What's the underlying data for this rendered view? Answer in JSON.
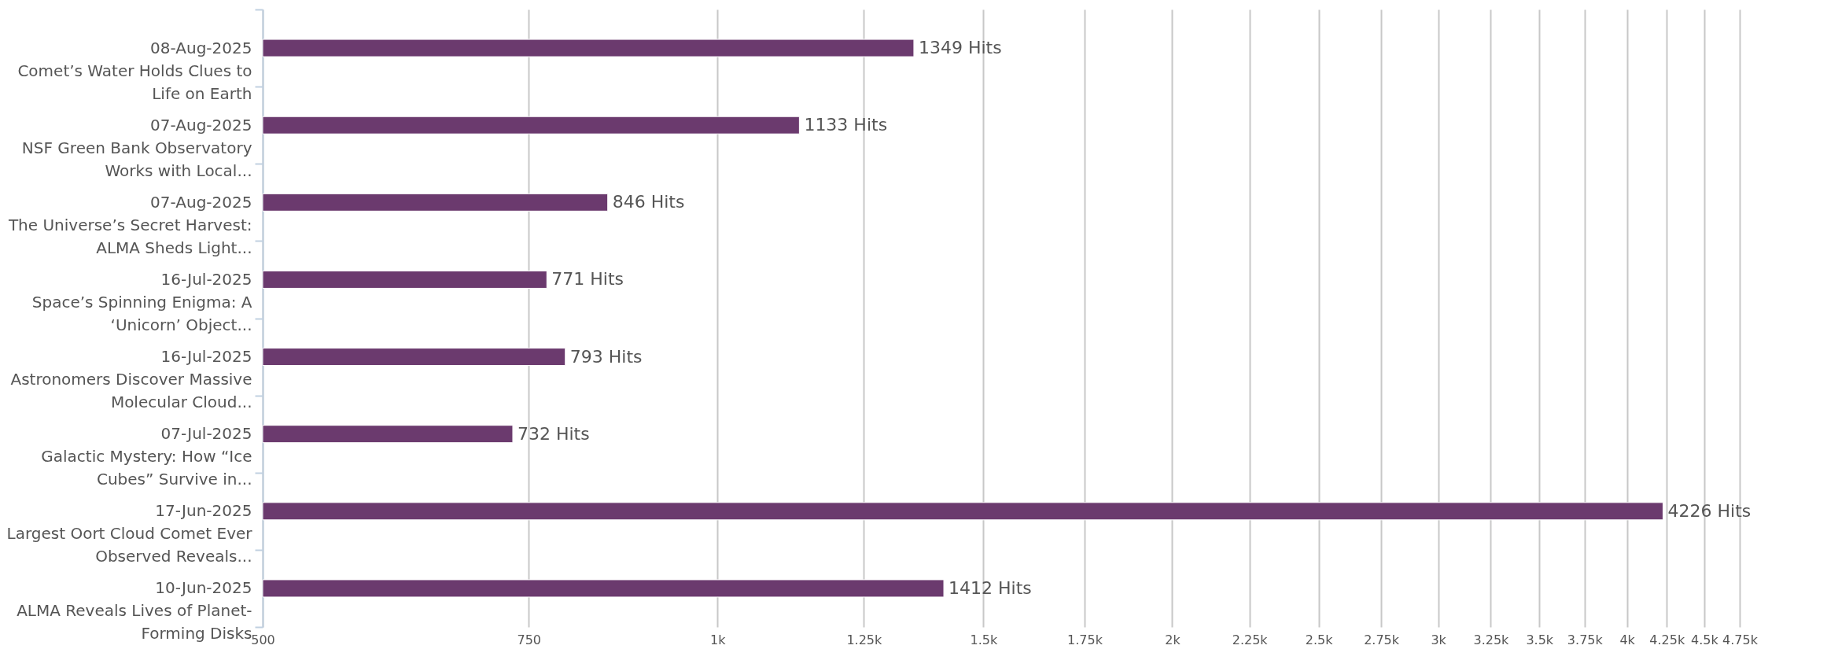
{
  "chart_data": {
    "type": "bar",
    "orientation": "horizontal",
    "categories": [
      "08-Aug-2025\nComet’s Water Holds Clues to\nLife on Earth",
      "07-Aug-2025\nNSF Green Bank Observatory\nWorks with Local...",
      "07-Aug-2025\nThe Universe’s Secret Harvest:\nALMA Sheds Light...",
      "16-Jul-2025\nSpace’s Spinning Enigma: A\n‘Unicorn’ Object...",
      "16-Jul-2025\nAstronomers Discover Massive\nMolecular Cloud...",
      "07-Jul-2025\nGalactic Mystery: How “Ice\nCubes” Survive in...",
      "17-Jun-2025\nLargest Oort Cloud Comet Ever\nObserved Reveals...",
      "10-Jun-2025\nALMA Reveals Lives of Planet-\nForming Disks"
    ],
    "values": [
      1349,
      1133,
      846,
      771,
      793,
      732,
      4226,
      1412
    ],
    "value_labels": [
      "1349 Hits",
      "1133 Hits",
      "846 Hits",
      "771 Hits",
      "793 Hits",
      "732 Hits",
      "4226 Hits",
      "1412 Hits"
    ],
    "color": "#6b3a6e",
    "log": "x",
    "xlim": [
      500,
      4750
    ],
    "xticks": [
      500,
      750,
      {
        "value": 1000,
        "label": "1k"
      },
      {
        "value": 1250,
        "label": "1.25k"
      },
      {
        "value": 1500,
        "label": "1.5k"
      },
      {
        "value": 1750,
        "label": "1.75k"
      },
      {
        "value": 2000,
        "label": "2k"
      },
      {
        "value": 2250,
        "label": "2.25k"
      },
      {
        "value": 2500,
        "label": "2.5k"
      },
      {
        "value": 2750,
        "label": "2.75k"
      },
      {
        "value": 3000,
        "label": "3k"
      },
      {
        "value": 3250,
        "label": "3.25k"
      },
      {
        "value": 3500,
        "label": "3.5k"
      },
      {
        "value": 3750,
        "label": "3.75k"
      },
      {
        "value": 4000,
        "label": "4k"
      },
      {
        "value": 4250,
        "label": "4.25k"
      },
      {
        "value": 4500,
        "label": "4.5k"
      },
      {
        "value": 4750,
        "label": "4.75k"
      }
    ],
    "grid": "x"
  }
}
